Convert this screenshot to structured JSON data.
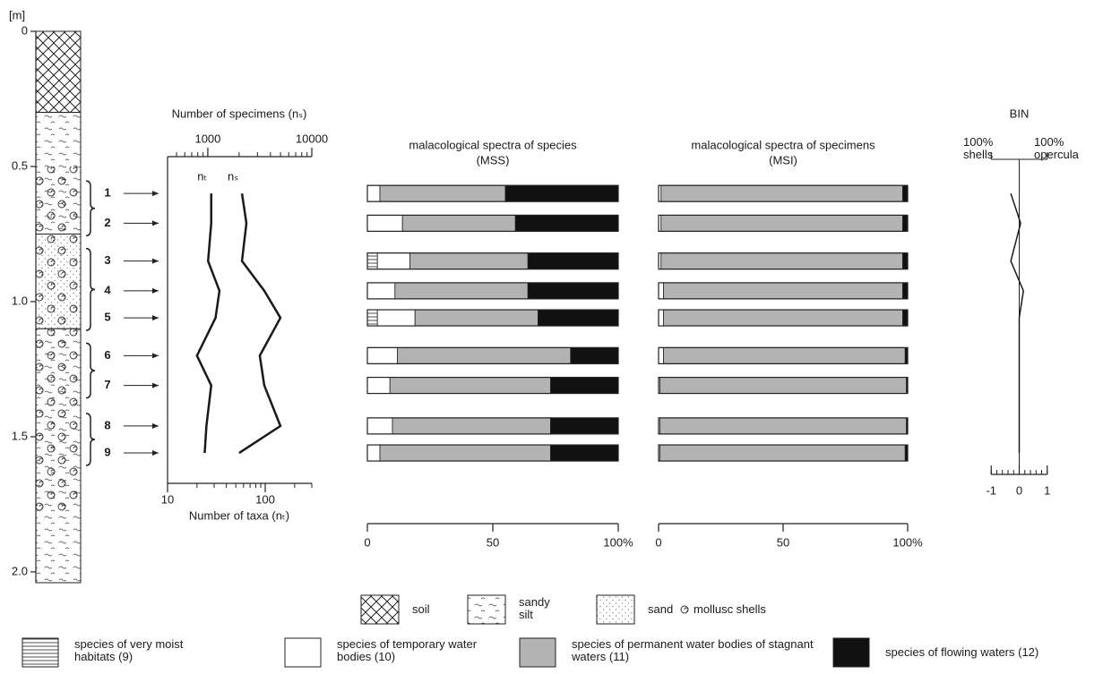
{
  "chart_data": [
    {
      "type": "lithology",
      "ylabel": "[m]",
      "ylim": [
        0,
        2.04
      ],
      "yticks": [
        0,
        0.5,
        {
          "value": 1,
          "label": "1.0"
        },
        1.5,
        {
          "value": 2,
          "label": "2.0"
        }
      ],
      "series": [
        {
          "name": "soil",
          "pattern": "crosshatch",
          "ranges": [
            [
              0,
              0.3
            ]
          ]
        },
        {
          "name": "sandy silt",
          "pattern": "silt",
          "ranges": [
            [
              0.3,
              0.75
            ],
            [
              1.1,
              2.04
            ]
          ]
        },
        {
          "name": "sand",
          "pattern": "dots",
          "ranges": [
            [
              0.75,
              1.1
            ]
          ]
        },
        {
          "name": "mollusc shells",
          "pattern": "shells",
          "ranges": [
            [
              0.5,
              1.78
            ]
          ]
        }
      ],
      "samples": [
        "1",
        "2",
        "3",
        "4",
        "5",
        "6",
        "7",
        "8",
        "9"
      ],
      "sample_depths": [
        0.6,
        0.71,
        0.85,
        0.96,
        1.06,
        1.2,
        1.31,
        1.46,
        1.56
      ]
    },
    {
      "type": "line",
      "log": true,
      "x_label": "Number of taxa (nₜ)",
      "x2_label": "Number of specimens (nₛ)",
      "xlim": [
        10,
        300
      ],
      "xticks": [
        10,
        100
      ],
      "x2lim": [
        410,
        10000
      ],
      "x2ticks": [
        1000,
        10000
      ],
      "series": [
        {
          "name": "nₜ",
          "color": "#1a1a1a",
          "values": [
            28,
            28,
            26,
            34,
            31,
            20,
            28,
            25,
            24
          ]
        },
        {
          "name": "nₛ",
          "color": "#1a1a1a",
          "axis": "x2",
          "values": [
            2130,
            2350,
            2130,
            3490,
            4990,
            3160,
            3490,
            4990,
            2000
          ]
        }
      ]
    },
    {
      "type": "stacked_bar_h",
      "title": "malacological spectra of species",
      "subtitle": "(MSS)",
      "xlim": [
        0,
        100
      ],
      "xticks": [
        0,
        50,
        {
          "value": 100,
          "label": "100%"
        }
      ],
      "series": [
        {
          "name": "species of very moist habitats (9)",
          "color": "#ffffff",
          "pattern": "hlines",
          "values": [
            0,
            0,
            4,
            0,
            4,
            0,
            0,
            0,
            0
          ]
        },
        {
          "name": "species of temporary water bodies (10)",
          "color": "#ffffff",
          "values": [
            5,
            14,
            13,
            11,
            15,
            12,
            9,
            10,
            5
          ]
        },
        {
          "name": "species of permanent water bodies of stagnant waters (11)",
          "color": "#b3b3b3",
          "values": [
            50,
            45,
            47,
            53,
            49,
            69,
            64,
            63,
            68
          ]
        },
        {
          "name": "species of flowing waters (12)",
          "color": "#111111",
          "values": [
            45,
            41,
            36,
            36,
            32,
            19,
            27,
            27,
            27
          ]
        }
      ]
    },
    {
      "type": "stacked_bar_h",
      "title": "malacological spectra of specimens",
      "subtitle": "(MSI)",
      "xlim": [
        0,
        100
      ],
      "xticks": [
        0,
        50,
        {
          "value": 100,
          "label": "100%"
        }
      ],
      "series": [
        {
          "color": "#ffffff",
          "values": [
            1,
            1,
            1,
            2,
            2,
            2,
            0.5,
            0.5,
            0.5
          ]
        },
        {
          "color": "#b3b3b3",
          "values": [
            97,
            97,
            97,
            96,
            96,
            97,
            99,
            99,
            98.5
          ]
        },
        {
          "color": "#111111",
          "values": [
            2,
            2,
            2,
            2,
            2,
            1,
            0.5,
            0.5,
            1
          ]
        }
      ]
    },
    {
      "type": "bin",
      "title": "BIN",
      "annotations": [
        "100% shells",
        "100% opercula"
      ],
      "xlim": [
        -1.2,
        1.2
      ],
      "xticks": [
        -1,
        0,
        1
      ],
      "color": "#1a1a1a",
      "values": [
        -0.3,
        0.05,
        -0.3,
        0.15,
        0,
        0,
        0,
        0,
        0
      ]
    }
  ]
}
